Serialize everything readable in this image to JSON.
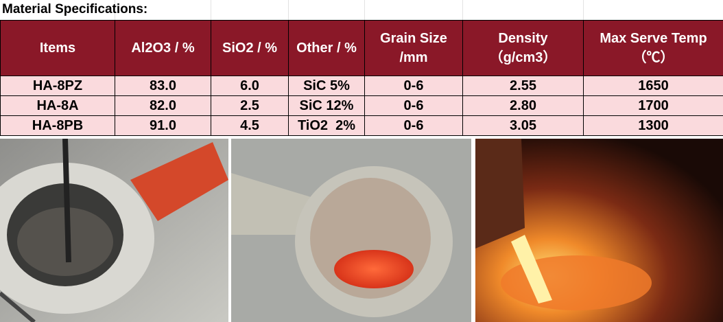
{
  "title": "Material Specifications:",
  "table": {
    "header": [
      "Items",
      "Al2O3 / %",
      "SiO2 / %",
      "Other / %",
      [
        "Grain Size",
        "/mm"
      ],
      [
        "Density",
        "（g/cm3）"
      ],
      [
        "Max Serve Temp",
        "（℃）"
      ]
    ],
    "rows": [
      [
        "HA-8PZ",
        "83.0",
        "6.0",
        "SiC 5%",
        "0-6",
        "2.55",
        "1650"
      ],
      [
        "HA-8A",
        "82.0",
        "2.5",
        "SiC 12%",
        "0-6",
        "2.80",
        "1700"
      ],
      [
        "HA-8PB",
        "91.0",
        "4.5",
        "TiO2  2%",
        "0-6",
        "3.05",
        "1300"
      ]
    ]
  }
}
